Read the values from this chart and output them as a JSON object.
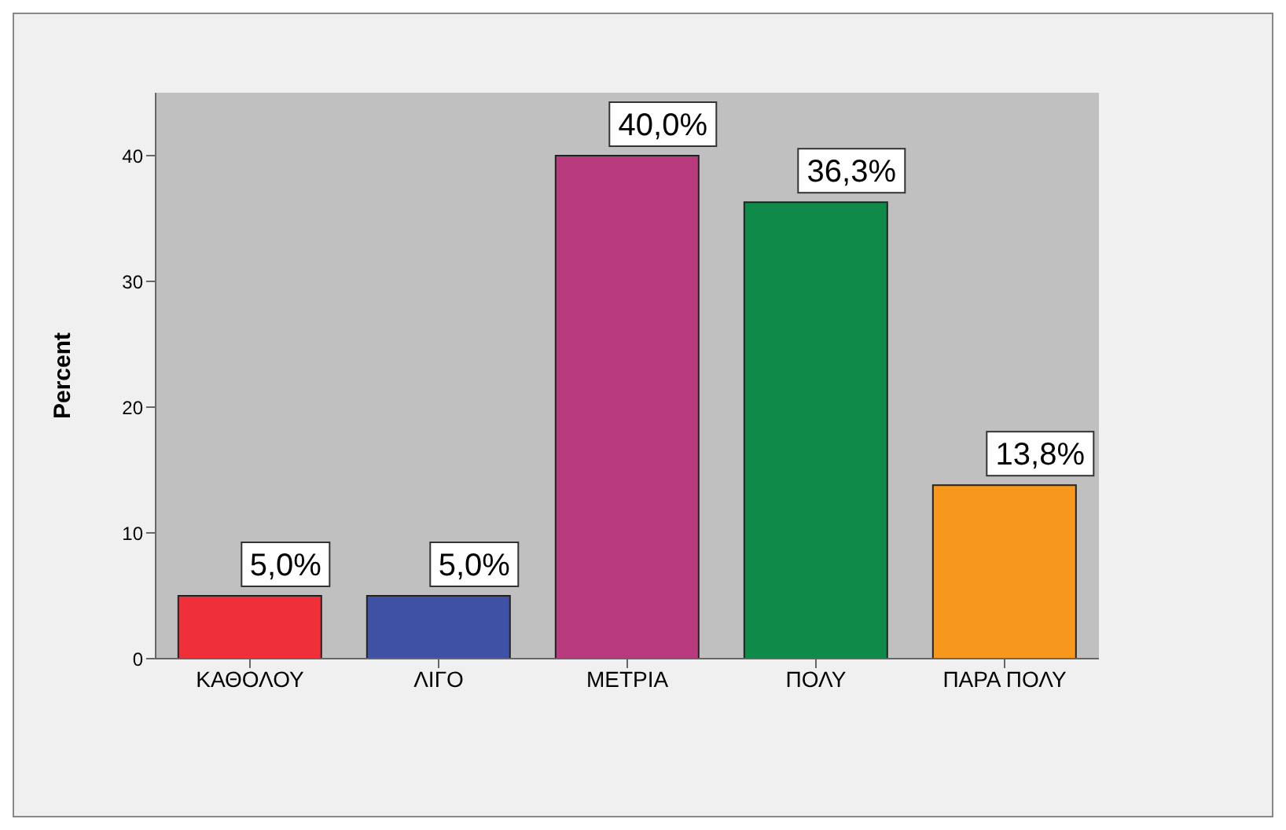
{
  "chart_data": {
    "type": "bar",
    "ylabel": "Percent",
    "categories": [
      "ΚΑΘΟΛΟΥ",
      "ΛΙΓΟ",
      "ΜΕΤΡΙΑ",
      "ΠΟΛΥ",
      "ΠΑΡΑ ΠΟΛΥ"
    ],
    "values": [
      5.0,
      5.0,
      40.0,
      36.3,
      13.8
    ],
    "colors": [
      "#ef3038",
      "#3f51a5",
      "#b83b7e",
      "#0f8a48",
      "#f7981d"
    ],
    "value_labels": [
      "5,0%",
      "5,0%",
      "40,0%",
      "36,3%",
      "13,8%"
    ],
    "ylim": [
      0,
      45
    ],
    "yticks": [
      0,
      10,
      20,
      30,
      40
    ],
    "grid": false,
    "legend": false
  }
}
